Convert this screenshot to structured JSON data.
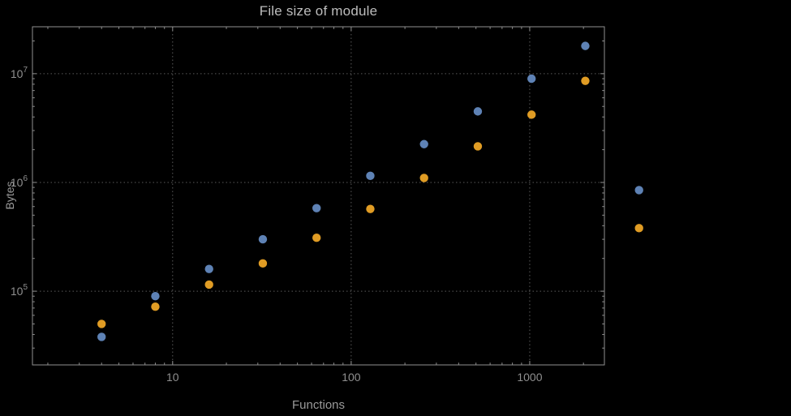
{
  "window": {
    "background": "#000000"
  },
  "chart_data": {
    "type": "scatter",
    "title": "File size of module",
    "xlabel": "Functions",
    "ylabel": "Bytes",
    "xscale": "log",
    "yscale": "log",
    "xlim": [
      1.64,
      2620
    ],
    "ylim": [
      21000,
      27000000
    ],
    "grid": "dotted",
    "legend": "none",
    "x": [
      4,
      8,
      16,
      32,
      64,
      128,
      256,
      512,
      1024,
      2048,
      4096
    ],
    "series": [
      {
        "name": "series-1-blue",
        "color": "#5e82b5",
        "values": [
          38000,
          90000,
          160000,
          300000,
          580000,
          1150000,
          2250000,
          4500000,
          9000000,
          18000000,
          850000
        ]
      },
      {
        "name": "series-2-orange",
        "color": "#e09c24",
        "values": [
          50000,
          72000,
          115000,
          180000,
          310000,
          570000,
          1100000,
          2150000,
          4200000,
          8600000,
          380000
        ]
      }
    ],
    "x_ticks": {
      "values": [
        10,
        100,
        1000
      ],
      "labels": [
        "10",
        "100",
        "1000"
      ]
    },
    "y_ticks": {
      "values": [
        100000,
        1000000,
        10000000
      ],
      "labels": [
        [
          "10",
          "5"
        ],
        [
          "10",
          "6"
        ],
        [
          "10",
          "7"
        ]
      ]
    },
    "colors": {
      "background": "#000000",
      "frame": "#8f8f8f",
      "grid": "#5a5a5a",
      "tick_text": "#8f8f8f",
      "axis_text": "#9a9a9a",
      "title_text": "#bdbdbd"
    },
    "point_radius": 5.2
  }
}
